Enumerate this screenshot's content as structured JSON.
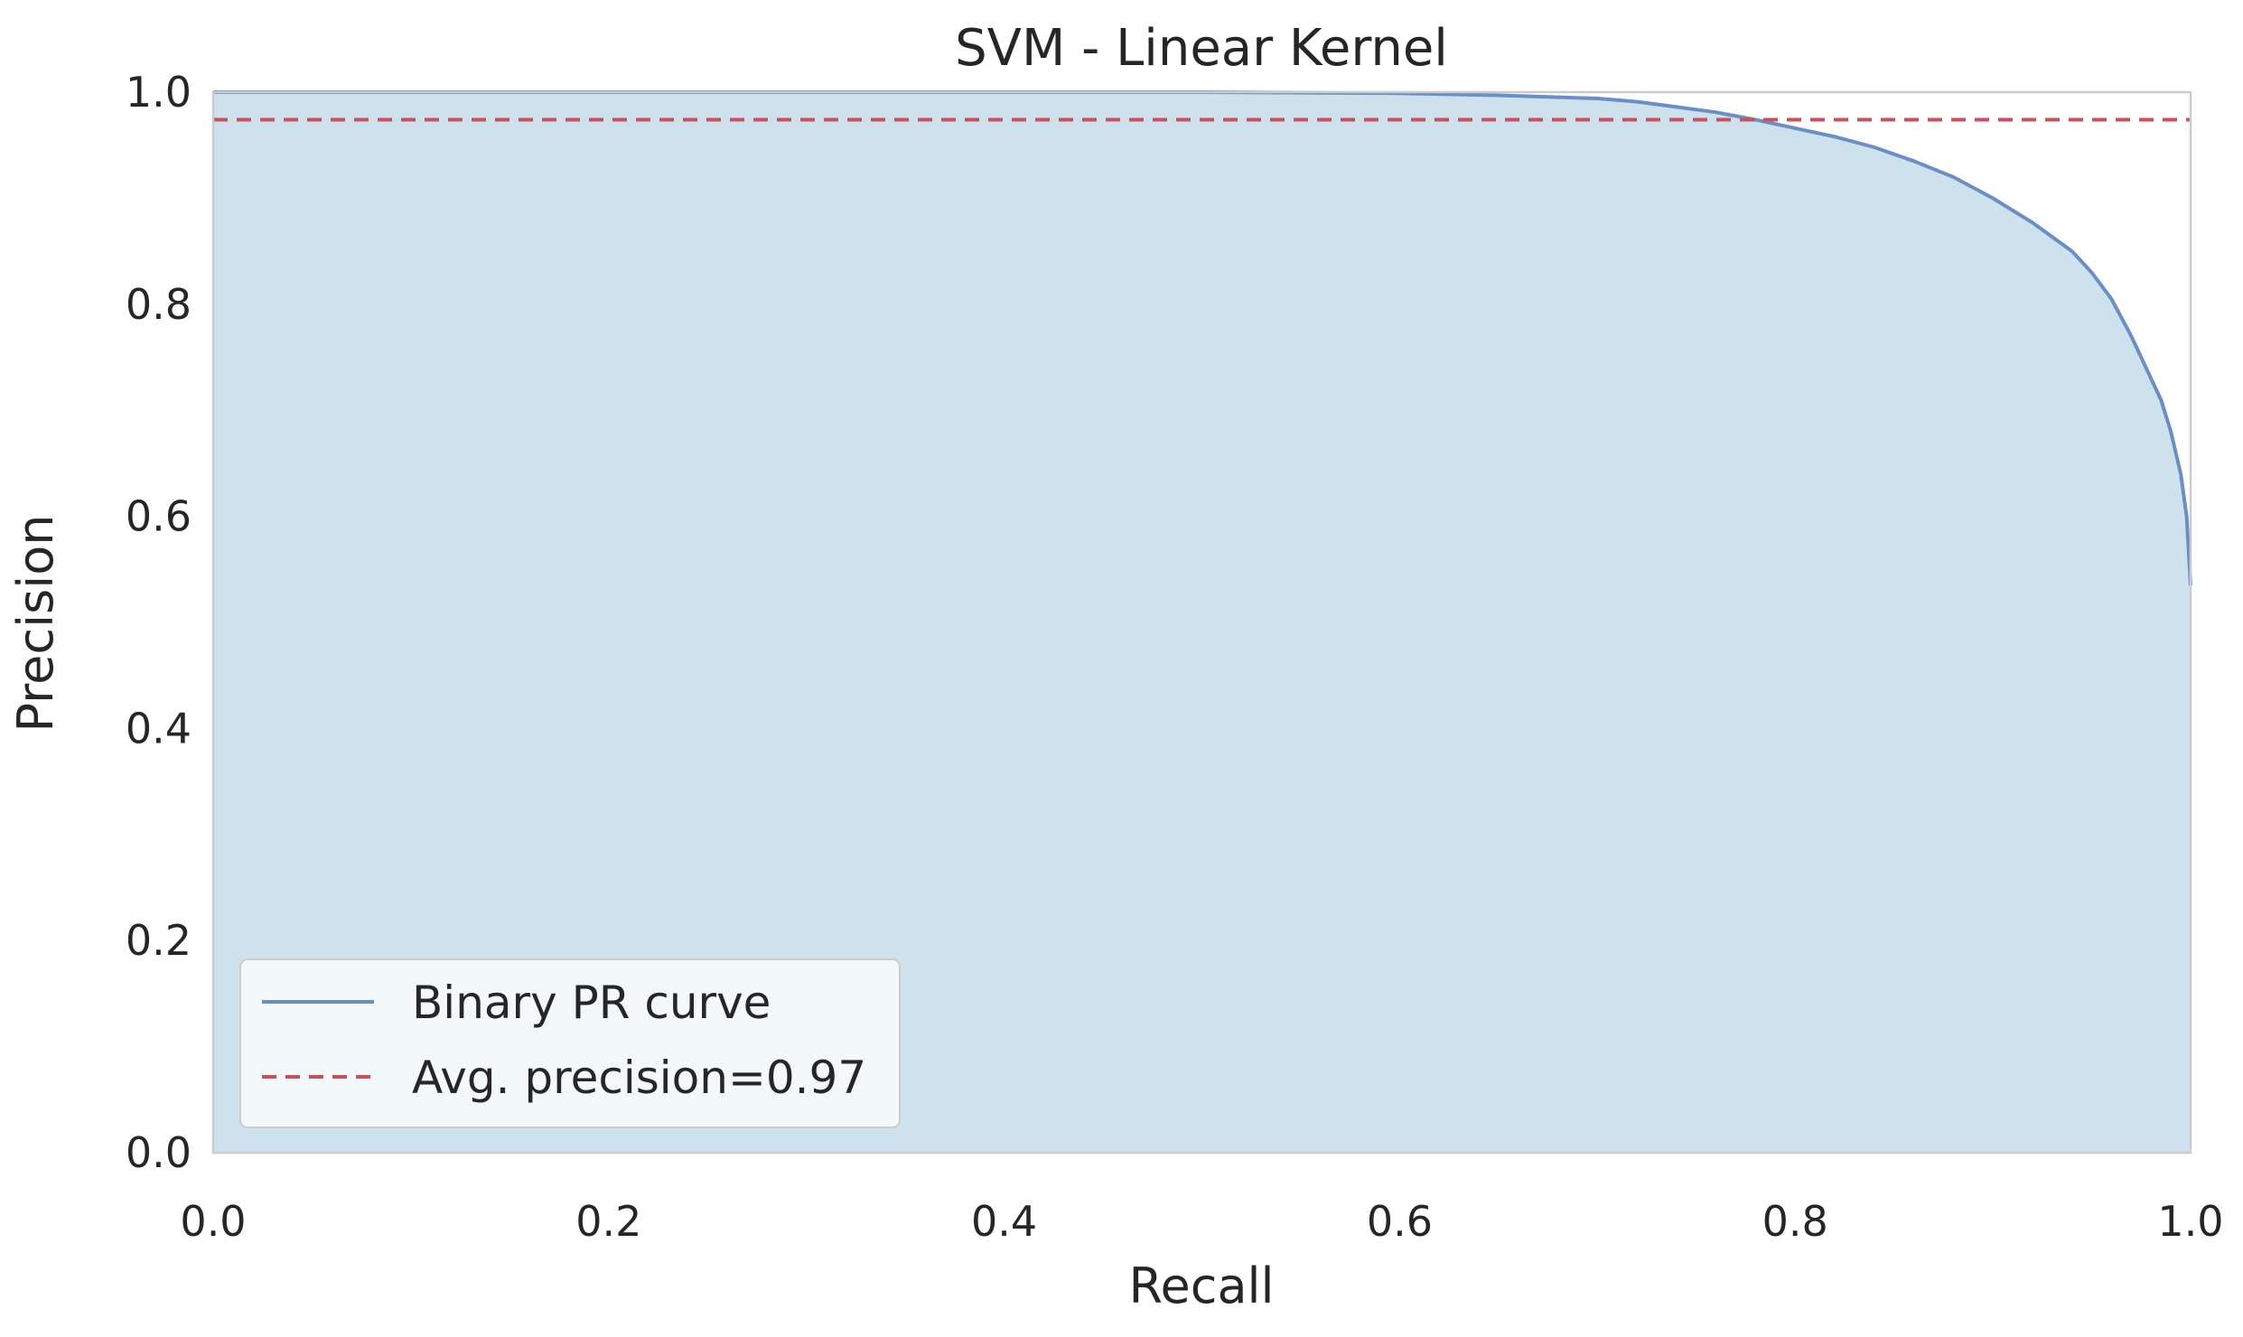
{
  "chart_data": {
    "type": "line",
    "title": "SVM - Linear Kernel",
    "xlabel": "Recall",
    "ylabel": "Precision",
    "xlim": [
      0.0,
      1.0
    ],
    "ylim": [
      0.0,
      1.0
    ],
    "x_ticks": [
      "0.0",
      "0.2",
      "0.4",
      "0.6",
      "0.8",
      "1.0"
    ],
    "y_ticks": [
      "0.0",
      "0.2",
      "0.4",
      "0.6",
      "0.8",
      "1.0"
    ],
    "grid": false,
    "legend_position": "lower-left",
    "colors": {
      "curve": "#6a8fc8",
      "fill": "#cde2ed",
      "reference_line": "#c8515e",
      "axes_edge": "#cccccc",
      "legend_bg": "#f3f8fb"
    },
    "series": [
      {
        "name": "Binary PR curve",
        "style": "solid",
        "x": [
          0.0,
          0.1,
          0.2,
          0.3,
          0.4,
          0.5,
          0.6,
          0.65,
          0.7,
          0.72,
          0.74,
          0.76,
          0.78,
          0.8,
          0.82,
          0.84,
          0.86,
          0.88,
          0.9,
          0.92,
          0.94,
          0.95,
          0.96,
          0.97,
          0.98,
          0.985,
          0.99,
          0.995,
          0.998,
          1.0
        ],
        "y": [
          1.0,
          1.0,
          1.0,
          1.0,
          1.0,
          1.0,
          0.999,
          0.997,
          0.994,
          0.991,
          0.986,
          0.981,
          0.974,
          0.966,
          0.958,
          0.948,
          0.935,
          0.92,
          0.9,
          0.877,
          0.85,
          0.83,
          0.805,
          0.77,
          0.73,
          0.71,
          0.68,
          0.64,
          0.6,
          0.535
        ]
      },
      {
        "name": "Avg. precision=0.97",
        "style": "dashed",
        "value": 0.974
      }
    ]
  }
}
